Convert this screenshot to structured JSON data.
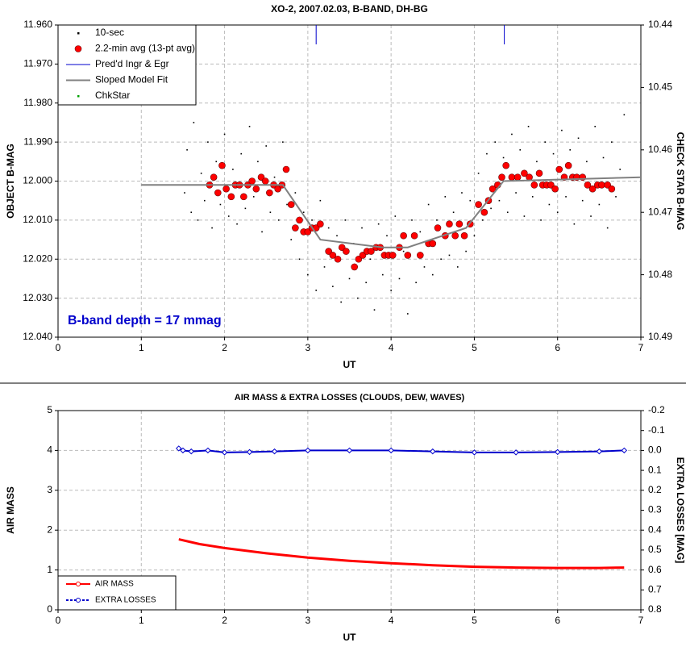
{
  "chart_data": [
    {
      "type": "scatter",
      "title": "XO-2, 2007.02.03, B-BAND, DH-BG",
      "x_label": "UT",
      "y_label": "OBJECT B-MAG",
      "y2_label": "CHECK STAR B-MAG",
      "annotation": "B-band depth = 17 mmag",
      "xlim": [
        0,
        7
      ],
      "xticks": [
        0,
        1,
        2,
        3,
        4,
        5,
        6,
        7
      ],
      "ylim": [
        11.96,
        12.04
      ],
      "y_reversed": true,
      "yticks": [
        {
          "value": 11.96,
          "label": "11.960"
        },
        {
          "value": 11.97,
          "label": "11.970"
        },
        {
          "value": 11.98,
          "label": "11.980"
        },
        {
          "value": 11.99,
          "label": "11.990"
        },
        {
          "value": 12.0,
          "label": "12.000"
        },
        {
          "value": 12.01,
          "label": "12.010"
        },
        {
          "value": 12.02,
          "label": "12.020"
        },
        {
          "value": 12.03,
          "label": "12.030"
        },
        {
          "value": 12.04,
          "label": "12.040"
        }
      ],
      "y2lim": [
        10.44,
        10.49
      ],
      "y2_reversed": true,
      "y2ticks": [
        10.44,
        10.45,
        10.46,
        10.47,
        10.48,
        10.49
      ],
      "grid": true,
      "legend": "upper left",
      "series": [
        {
          "name": "10-sec",
          "color": "#000000",
          "style": "dot",
          "x": [
            1.52,
            1.55,
            1.6,
            1.63,
            1.68,
            1.72,
            1.76,
            1.8,
            1.85,
            1.9,
            1.95,
            2.0,
            2.05,
            2.1,
            2.15,
            2.2,
            2.25,
            2.3,
            2.35,
            2.4,
            2.45,
            2.5,
            2.55,
            2.6,
            2.65,
            2.7,
            2.75,
            2.8,
            2.85,
            2.9,
            2.95,
            3.0,
            3.05,
            3.1,
            3.15,
            3.2,
            3.25,
            3.3,
            3.35,
            3.4,
            3.45,
            3.5,
            3.55,
            3.6,
            3.65,
            3.7,
            3.75,
            3.8,
            3.85,
            3.9,
            3.95,
            4.0,
            4.05,
            4.1,
            4.15,
            4.2,
            4.25,
            4.3,
            4.35,
            4.4,
            4.45,
            4.5,
            4.55,
            4.6,
            4.65,
            4.7,
            4.75,
            4.8,
            4.85,
            4.9,
            4.95,
            5.0,
            5.05,
            5.1,
            5.15,
            5.2,
            5.25,
            5.3,
            5.35,
            5.4,
            5.45,
            5.5,
            5.55,
            5.6,
            5.65,
            5.7,
            5.75,
            5.8,
            5.85,
            5.9,
            5.95,
            6.0,
            6.05,
            6.1,
            6.15,
            6.2,
            6.25,
            6.3,
            6.35,
            6.4,
            6.45,
            6.5,
            6.55,
            6.6,
            6.65,
            6.7,
            6.75,
            6.8
          ],
          "values": [
            12.003,
            11.992,
            12.008,
            11.985,
            12.01,
            11.998,
            12.005,
            11.99,
            12.012,
            11.995,
            12.006,
            11.988,
            12.009,
            11.997,
            12.011,
            11.993,
            12.007,
            11.986,
            12.004,
            11.995,
            12.013,
            11.991,
            12.008,
            11.999,
            12.01,
            11.99,
            12.006,
            12.015,
            12.003,
            12.02,
            12.008,
            12.024,
            12.01,
            12.028,
            12.005,
            12.022,
            12.012,
            12.027,
            12.014,
            12.031,
            12.01,
            12.025,
            12.016,
            12.03,
            12.012,
            12.026,
            12.02,
            12.033,
            12.011,
            12.024,
            12.014,
            12.028,
            12.009,
            12.025,
            12.018,
            12.034,
            12.01,
            12.026,
            12.013,
            12.022,
            12.006,
            12.024,
            12.01,
            12.02,
            12.004,
            12.019,
            12.008,
            12.022,
            12.003,
            12.018,
            12.005,
            12.014,
            11.998,
            12.01,
            11.993,
            12.007,
            11.99,
            12.005,
            11.994,
            12.008,
            11.988,
            12.003,
            11.992,
            12.009,
            11.986,
            12.004,
            11.995,
            12.01,
            11.99,
            12.006,
            11.993,
            12.008,
            11.987,
            12.004,
            11.992,
            12.011,
            11.989,
            12.005,
            11.995,
            12.009,
            11.986,
            12.006,
            11.994,
            12.012,
            11.99,
            12.004,
            11.997,
            11.983
          ]
        },
        {
          "name": "2.2-min avg (13-pt avg)",
          "color": "#ff0000",
          "style": "circle",
          "x": [
            1.82,
            1.87,
            1.92,
            1.97,
            2.02,
            2.08,
            2.13,
            2.18,
            2.23,
            2.28,
            2.33,
            2.38,
            2.44,
            2.49,
            2.54,
            2.59,
            2.64,
            2.69,
            2.74,
            2.8,
            2.85,
            2.9,
            2.95,
            3.0,
            3.05,
            3.1,
            3.15,
            3.25,
            3.3,
            3.36,
            3.41,
            3.46,
            3.56,
            3.61,
            3.66,
            3.71,
            3.76,
            3.82,
            3.87,
            3.92,
            3.97,
            4.02,
            4.1,
            4.15,
            4.2,
            4.28,
            4.35,
            4.45,
            4.5,
            4.56,
            4.65,
            4.7,
            4.77,
            4.82,
            4.88,
            4.95,
            5.05,
            5.12,
            5.17,
            5.22,
            5.28,
            5.33,
            5.38,
            5.45,
            5.52,
            5.6,
            5.66,
            5.72,
            5.78,
            5.82,
            5.87,
            5.92,
            5.97,
            6.02,
            6.08,
            6.13,
            6.18,
            6.23,
            6.3,
            6.36,
            6.42,
            6.48,
            6.53,
            6.6,
            6.65
          ],
          "values": [
            12.001,
            11.999,
            12.003,
            11.996,
            12.002,
            12.004,
            12.001,
            12.001,
            12.004,
            12.001,
            12.0,
            12.002,
            11.999,
            12.0,
            12.003,
            12.001,
            12.002,
            12.001,
            11.997,
            12.006,
            12.012,
            12.01,
            12.013,
            12.013,
            12.012,
            12.012,
            12.011,
            12.018,
            12.019,
            12.02,
            12.017,
            12.018,
            12.022,
            12.02,
            12.019,
            12.018,
            12.018,
            12.017,
            12.017,
            12.019,
            12.019,
            12.019,
            12.017,
            12.014,
            12.019,
            12.014,
            12.019,
            12.016,
            12.016,
            12.012,
            12.014,
            12.011,
            12.014,
            12.011,
            12.014,
            12.011,
            12.006,
            12.008,
            12.005,
            12.002,
            12.001,
            11.999,
            11.996,
            11.999,
            11.999,
            11.998,
            11.999,
            12.001,
            11.998,
            12.001,
            12.001,
            12.001,
            12.002,
            11.997,
            11.999,
            11.996,
            11.999,
            11.999,
            11.999,
            12.001,
            12.002,
            12.001,
            12.001,
            12.001,
            12.002
          ]
        },
        {
          "name": "Pred'd Ingr & Egr",
          "color": "#0000cc",
          "style": "vline",
          "x": [
            3.1,
            5.36
          ]
        },
        {
          "name": "Sloped Model Fit",
          "color": "#808080",
          "style": "line",
          "x": [
            1.0,
            2.7,
            3.15,
            3.9,
            4.2,
            4.9,
            5.35,
            7.0
          ],
          "values": [
            12.001,
            12.001,
            12.015,
            12.017,
            12.017,
            12.012,
            12.0,
            11.999
          ]
        },
        {
          "name": "ChkStar",
          "color": "#00a000",
          "style": "dot",
          "axis": "y2",
          "x": [],
          "values": []
        }
      ]
    },
    {
      "type": "line",
      "title": "AIR MASS & EXTRA LOSSES (CLOUDS, DEW, WAVES)",
      "x_label": "UT",
      "y_label": "AIR MASS",
      "y2_label": "EXTRA LOSSES [MAG]",
      "xlim": [
        0,
        7
      ],
      "xticks": [
        0,
        1,
        2,
        3,
        4,
        5,
        6,
        7
      ],
      "ylim": [
        0,
        5
      ],
      "yticks": [
        0,
        1,
        2,
        3,
        4,
        5
      ],
      "y2lim": [
        -0.2,
        0.8
      ],
      "y2_reversed": true,
      "y2ticks": [
        -0.2,
        -0.1,
        {
          "value": 0,
          "label": "0.0"
        },
        0.1,
        0.2,
        0.3,
        0.4,
        0.5,
        0.6,
        0.7,
        0.8
      ],
      "grid": true,
      "legend": "lower left",
      "series": [
        {
          "name": "AIR MASS",
          "color": "#ff0000",
          "style": "thick-line",
          "x": [
            1.45,
            1.7,
            2.0,
            2.5,
            3.0,
            3.5,
            4.0,
            4.5,
            5.0,
            5.5,
            6.0,
            6.5,
            6.8
          ],
          "values": [
            1.77,
            1.65,
            1.55,
            1.42,
            1.31,
            1.23,
            1.17,
            1.12,
            1.08,
            1.06,
            1.05,
            1.05,
            1.06
          ]
        },
        {
          "name": "EXTRA LOSSES",
          "color": "#0000cc",
          "style": "line-diamond",
          "axis": "y2",
          "x": [
            1.45,
            1.5,
            1.6,
            1.8,
            2.0,
            2.3,
            2.6,
            3.0,
            3.5,
            4.0,
            4.5,
            5.0,
            5.5,
            6.0,
            6.5,
            6.8
          ],
          "values": [
            -0.01,
            0.0,
            0.005,
            0.0,
            0.01,
            0.008,
            0.005,
            0.0,
            0.0,
            0.0,
            0.005,
            0.01,
            0.01,
            0.008,
            0.005,
            0.0
          ]
        }
      ]
    }
  ]
}
